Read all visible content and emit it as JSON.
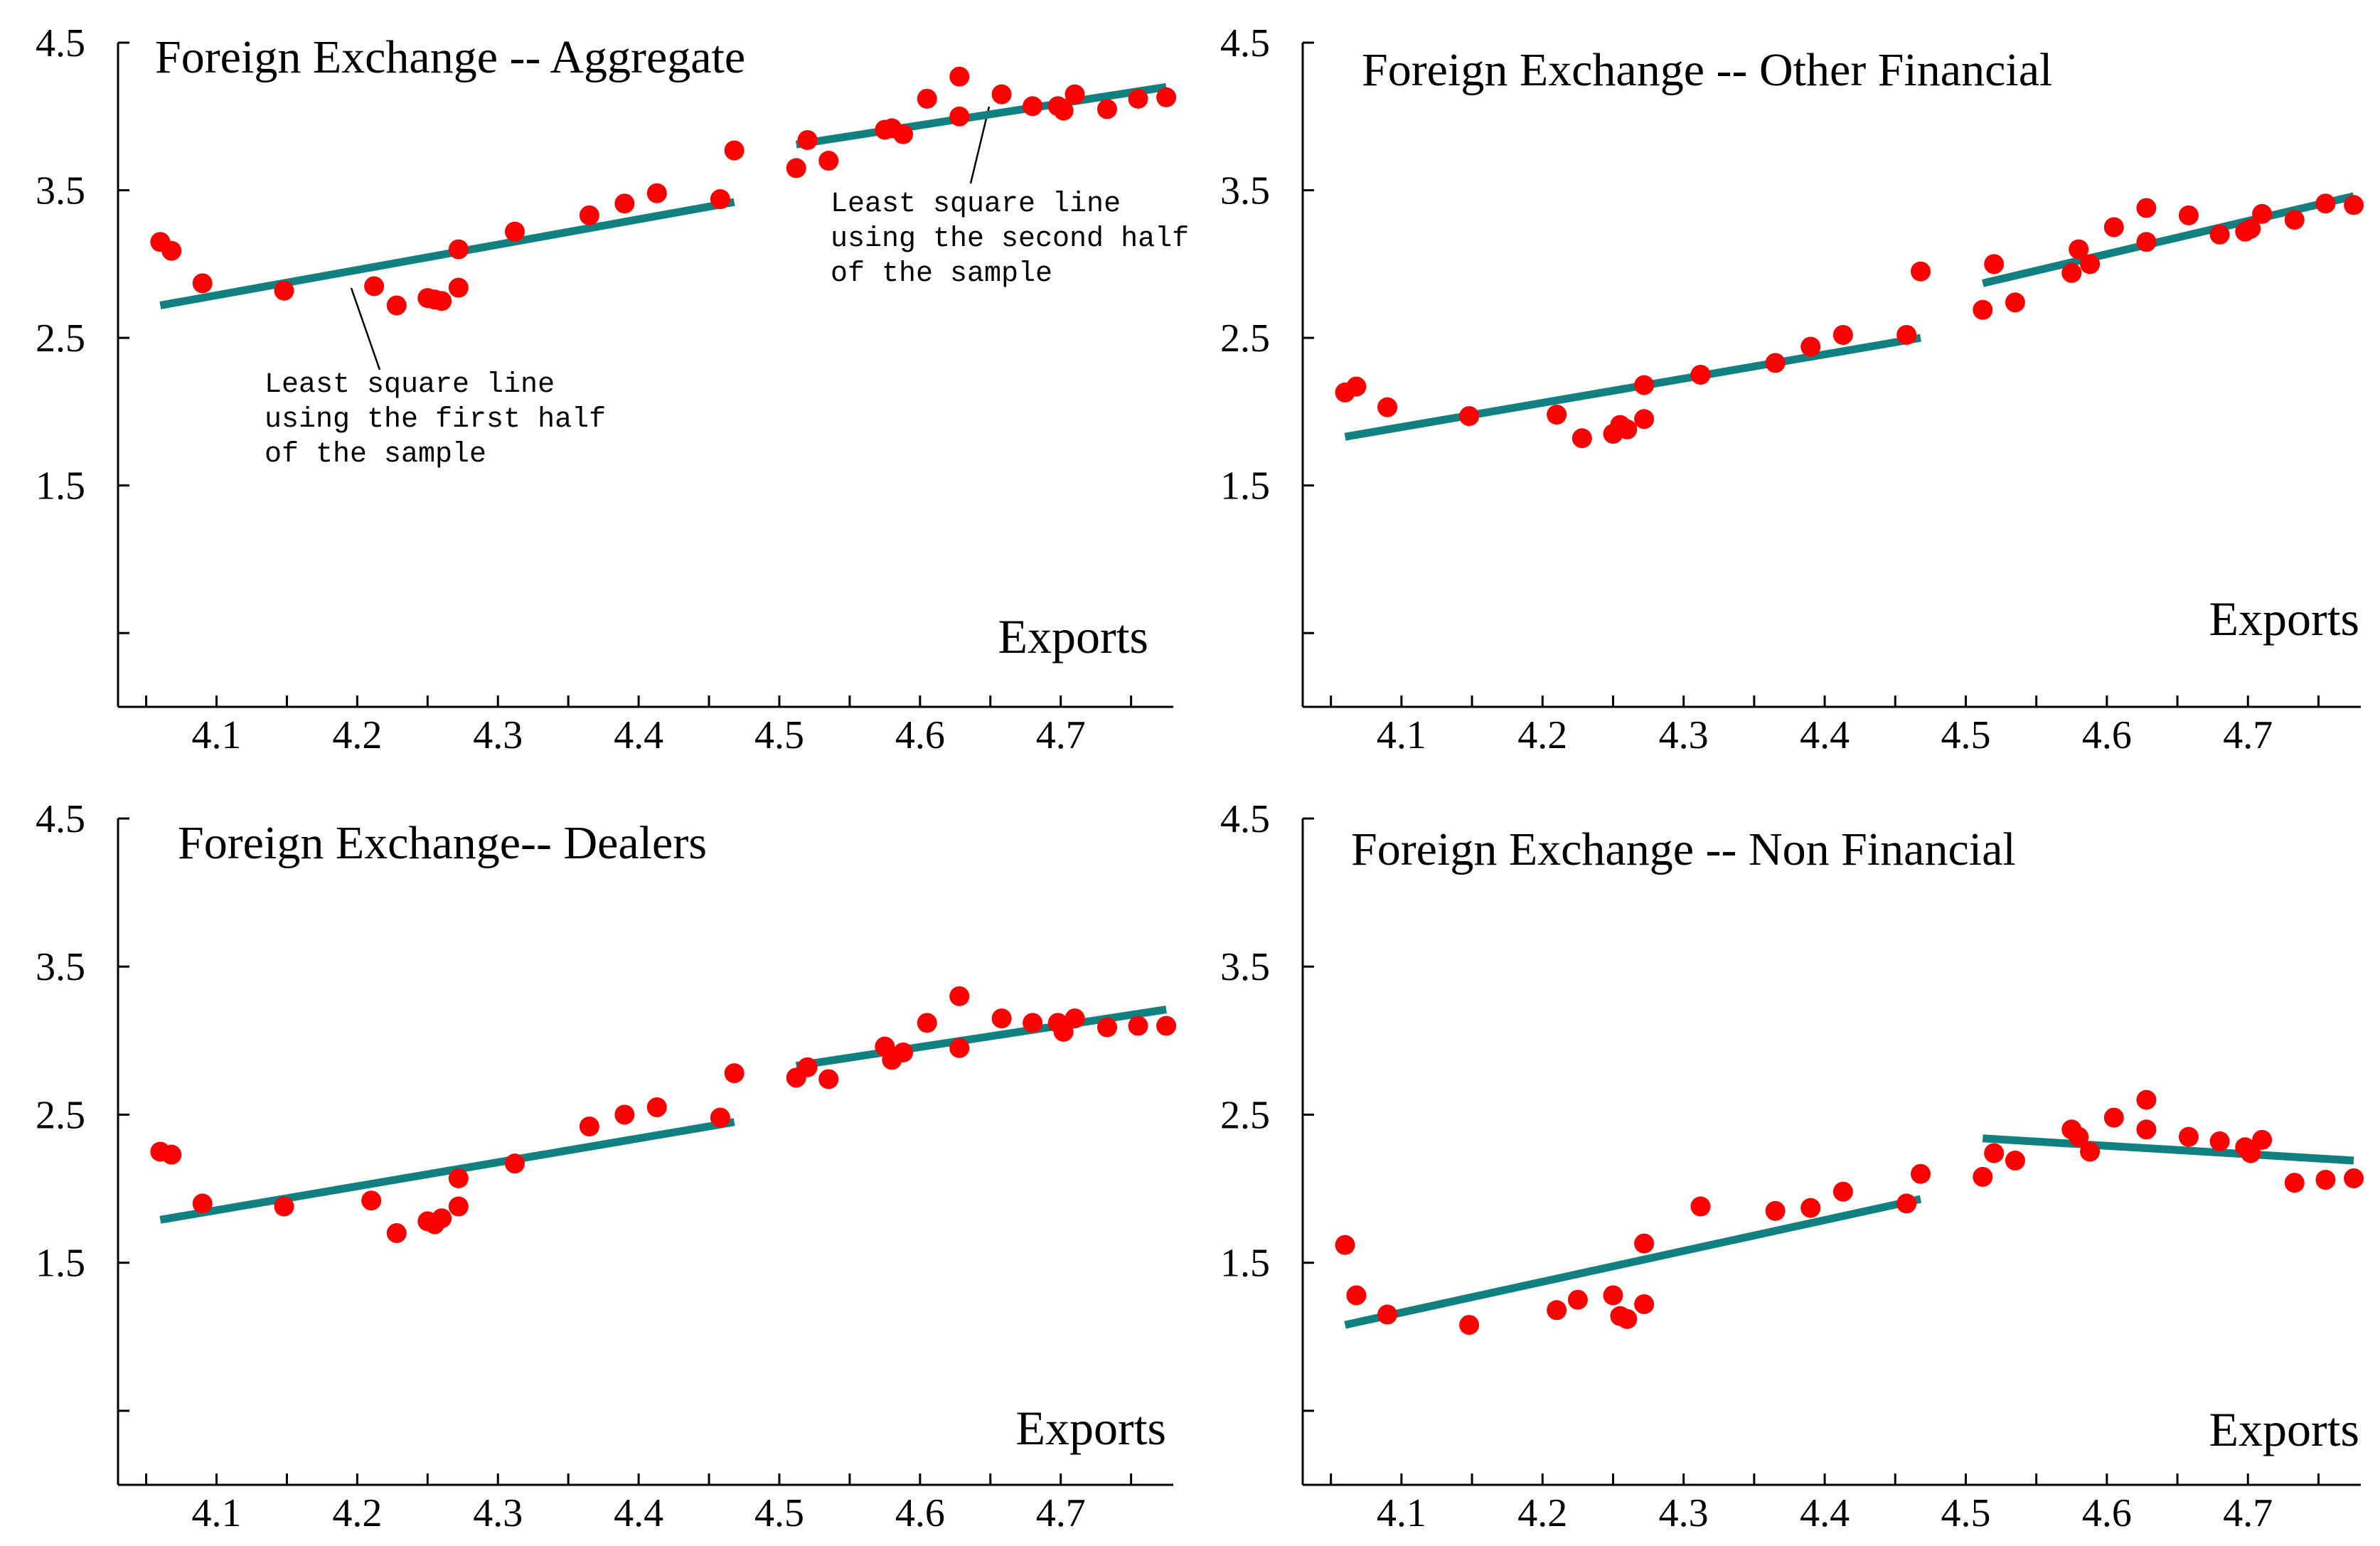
{
  "colors": {
    "points": "#ff0000",
    "fit_line": "#108080",
    "axis": "#000000"
  },
  "chart_data": [
    {
      "type": "scatter",
      "title": "Foreign Exchange -- Aggregate",
      "xlabel": "Exports",
      "xlim": [
        4.03,
        4.78
      ],
      "ylim": [
        0.0,
        4.5
      ],
      "yticks": [
        4.5,
        3.5,
        2.5,
        1.5,
        0.5
      ],
      "ytick_labels": [
        "4.5",
        "3.5",
        "2.5",
        "1.5",
        ""
      ],
      "xticks": [
        4.05,
        4.1,
        4.15,
        4.2,
        4.25,
        4.3,
        4.35,
        4.4,
        4.45,
        4.5,
        4.55,
        4.6,
        4.65,
        4.7,
        4.75
      ],
      "xtick_labels": [
        "",
        "4.1",
        "",
        "4.2",
        "",
        "4.3",
        "",
        "4.4",
        "",
        "4.5",
        "",
        "4.6",
        "",
        "4.7",
        ""
      ],
      "x": [
        4.06,
        4.068,
        4.09,
        4.148,
        4.212,
        4.228,
        4.25,
        4.255,
        4.26,
        4.272,
        4.272,
        4.312,
        4.365,
        4.39,
        4.413,
        4.458,
        4.468,
        4.512,
        4.52,
        4.535,
        4.575,
        4.58,
        4.588,
        4.605,
        4.628,
        4.628,
        4.658,
        4.68,
        4.698,
        4.702,
        4.71,
        4.733,
        4.755,
        4.775
      ],
      "y": [
        3.15,
        3.09,
        2.87,
        2.82,
        2.85,
        2.72,
        2.77,
        2.76,
        2.75,
        2.84,
        3.1,
        3.22,
        3.33,
        3.41,
        3.48,
        3.44,
        3.77,
        3.65,
        3.84,
        3.7,
        3.91,
        3.92,
        3.88,
        4.12,
        4.0,
        4.27,
        4.15,
        4.07,
        4.07,
        4.04,
        4.15,
        4.05,
        4.12,
        4.13
      ],
      "fit_lines": [
        {
          "x": [
            4.06,
            4.468
          ],
          "y": [
            2.72,
            3.42
          ]
        },
        {
          "x": [
            4.512,
            4.775
          ],
          "y": [
            3.81,
            4.2
          ]
        }
      ],
      "annotations": [
        {
          "lines": [
            "Least square line",
            "using the first half",
            "of the sample"
          ]
        },
        {
          "lines": [
            "Least square line",
            "using the second half",
            "of the sample"
          ]
        }
      ]
    },
    {
      "type": "scatter",
      "title": "Foreign Exchange -- Other Financial",
      "xlabel": "Exports",
      "xlim": [
        4.03,
        4.78
      ],
      "ylim": [
        0.0,
        4.5
      ],
      "yticks": [
        4.5,
        3.5,
        2.5,
        1.5,
        0.5
      ],
      "ytick_labels": [
        "4.5",
        "3.5",
        "2.5",
        "1.5",
        ""
      ],
      "xticks": [
        4.05,
        4.1,
        4.15,
        4.2,
        4.25,
        4.3,
        4.35,
        4.4,
        4.45,
        4.5,
        4.55,
        4.6,
        4.65,
        4.7,
        4.75
      ],
      "xtick_labels": [
        "",
        "4.1",
        "",
        "4.2",
        "",
        "4.3",
        "",
        "4.4",
        "",
        "4.5",
        "",
        "4.6",
        "",
        "4.7",
        ""
      ],
      "x": [
        4.06,
        4.068,
        4.09,
        4.148,
        4.21,
        4.228,
        4.25,
        4.255,
        4.26,
        4.272,
        4.272,
        4.312,
        4.365,
        4.39,
        4.413,
        4.458,
        4.468,
        4.512,
        4.52,
        4.535,
        4.575,
        4.58,
        4.588,
        4.605,
        4.628,
        4.628,
        4.658,
        4.68,
        4.698,
        4.702,
        4.71,
        4.733,
        4.755,
        4.775
      ],
      "y": [
        2.13,
        2.17,
        2.03,
        1.97,
        1.98,
        1.82,
        1.85,
        1.91,
        1.88,
        1.95,
        2.18,
        2.25,
        2.33,
        2.44,
        2.52,
        2.52,
        2.95,
        2.69,
        3.0,
        2.74,
        2.94,
        3.1,
        3.0,
        3.25,
        3.15,
        3.38,
        3.33,
        3.2,
        3.22,
        3.24,
        3.34,
        3.3,
        3.41,
        3.4
      ],
      "fit_lines": [
        {
          "x": [
            4.06,
            4.468
          ],
          "y": [
            1.83,
            2.5
          ]
        },
        {
          "x": [
            4.512,
            4.775
          ],
          "y": [
            2.87,
            3.46
          ]
        }
      ]
    },
    {
      "type": "scatter",
      "title": "Foreign Exchange-- Dealers",
      "xlabel": "Exports",
      "xlim": [
        4.03,
        4.78
      ],
      "ylim": [
        0.0,
        4.5
      ],
      "yticks": [
        4.5,
        3.5,
        2.5,
        1.5,
        0.5
      ],
      "ytick_labels": [
        "4.5",
        "3.5",
        "2.5",
        "1.5",
        ""
      ],
      "xticks": [
        4.05,
        4.1,
        4.15,
        4.2,
        4.25,
        4.3,
        4.35,
        4.4,
        4.45,
        4.5,
        4.55,
        4.6,
        4.65,
        4.7,
        4.75
      ],
      "xtick_labels": [
        "",
        "4.1",
        "",
        "4.2",
        "",
        "4.3",
        "",
        "4.4",
        "",
        "4.5",
        "",
        "4.6",
        "",
        "4.7",
        ""
      ],
      "x": [
        4.06,
        4.068,
        4.09,
        4.148,
        4.21,
        4.228,
        4.25,
        4.255,
        4.26,
        4.272,
        4.272,
        4.312,
        4.365,
        4.39,
        4.413,
        4.458,
        4.468,
        4.512,
        4.52,
        4.535,
        4.575,
        4.58,
        4.588,
        4.605,
        4.628,
        4.628,
        4.658,
        4.68,
        4.698,
        4.702,
        4.71,
        4.733,
        4.755,
        4.775
      ],
      "y": [
        2.25,
        2.23,
        1.9,
        1.88,
        1.92,
        1.7,
        1.78,
        1.76,
        1.8,
        1.88,
        2.07,
        2.17,
        2.42,
        2.5,
        2.55,
        2.48,
        2.78,
        2.75,
        2.82,
        2.74,
        2.96,
        2.87,
        2.92,
        3.12,
        2.95,
        3.3,
        3.15,
        3.12,
        3.12,
        3.06,
        3.15,
        3.09,
        3.1,
        3.1
      ],
      "fit_lines": [
        {
          "x": [
            4.06,
            4.468
          ],
          "y": [
            1.79,
            2.45
          ]
        },
        {
          "x": [
            4.512,
            4.775
          ],
          "y": [
            2.83,
            3.21
          ]
        }
      ]
    },
    {
      "type": "scatter",
      "title": "Foreign Exchange -- Non Financial",
      "xlabel": "Exports",
      "xlim": [
        4.03,
        4.78
      ],
      "ylim": [
        0.0,
        4.5
      ],
      "yticks": [
        4.5,
        3.5,
        2.5,
        1.5,
        0.5
      ],
      "ytick_labels": [
        "4.5",
        "3.5",
        "2.5",
        "1.5",
        ""
      ],
      "xticks": [
        4.05,
        4.1,
        4.15,
        4.2,
        4.25,
        4.3,
        4.35,
        4.4,
        4.45,
        4.5,
        4.55,
        4.6,
        4.65,
        4.7,
        4.75
      ],
      "xtick_labels": [
        "",
        "4.1",
        "",
        "4.2",
        "",
        "4.3",
        "",
        "4.4",
        "",
        "4.5",
        "",
        "4.6",
        "",
        "4.7",
        ""
      ],
      "x": [
        4.06,
        4.068,
        4.09,
        4.148,
        4.21,
        4.225,
        4.25,
        4.255,
        4.26,
        4.272,
        4.272,
        4.312,
        4.365,
        4.39,
        4.413,
        4.458,
        4.468,
        4.512,
        4.52,
        4.535,
        4.575,
        4.58,
        4.588,
        4.605,
        4.628,
        4.628,
        4.658,
        4.68,
        4.698,
        4.702,
        4.71,
        4.733,
        4.755,
        4.775
      ],
      "y": [
        1.62,
        1.28,
        1.15,
        1.08,
        1.18,
        1.25,
        1.28,
        1.14,
        1.12,
        1.63,
        1.22,
        1.88,
        1.85,
        1.87,
        1.98,
        1.9,
        2.1,
        2.08,
        2.24,
        2.19,
        2.4,
        2.35,
        2.25,
        2.48,
        2.6,
        2.4,
        2.35,
        2.32,
        2.28,
        2.24,
        2.33,
        2.04,
        2.06,
        2.07
      ],
      "fit_lines": [
        {
          "x": [
            4.06,
            4.468
          ],
          "y": [
            1.08,
            1.93
          ]
        },
        {
          "x": [
            4.512,
            4.775
          ],
          "y": [
            2.34,
            2.19
          ]
        }
      ]
    }
  ]
}
